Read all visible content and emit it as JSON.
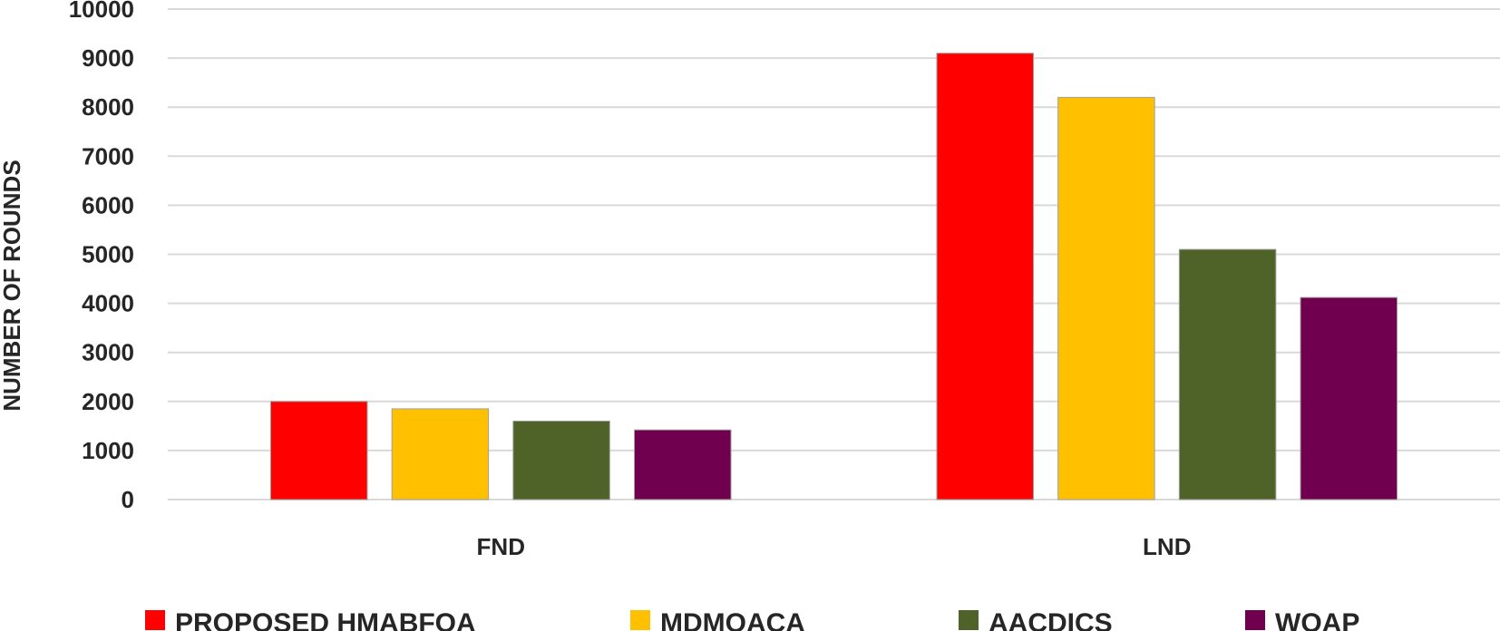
{
  "chart_data": {
    "type": "bar",
    "categories": [
      "FND",
      "LND"
    ],
    "series": [
      {
        "name": "PROPOSED HMABFOA",
        "color": "#ff0000",
        "values": [
          2000,
          9100
        ]
      },
      {
        "name": "MDMOACA",
        "color": "#ffc000",
        "values": [
          1850,
          8200
        ]
      },
      {
        "name": "AACDICS",
        "color": "#4f6228",
        "values": [
          1600,
          5100
        ]
      },
      {
        "name": "WOAP",
        "color": "#70004f",
        "values": [
          1420,
          4120
        ]
      }
    ],
    "xlabel": "",
    "ylabel": "NUMBER OF ROUNDS",
    "ylim": [
      0,
      10000
    ],
    "yticks": [
      0,
      1000,
      2000,
      3000,
      4000,
      5000,
      6000,
      7000,
      8000,
      9000,
      10000
    ],
    "grid": true,
    "legend_position": "bottom"
  }
}
